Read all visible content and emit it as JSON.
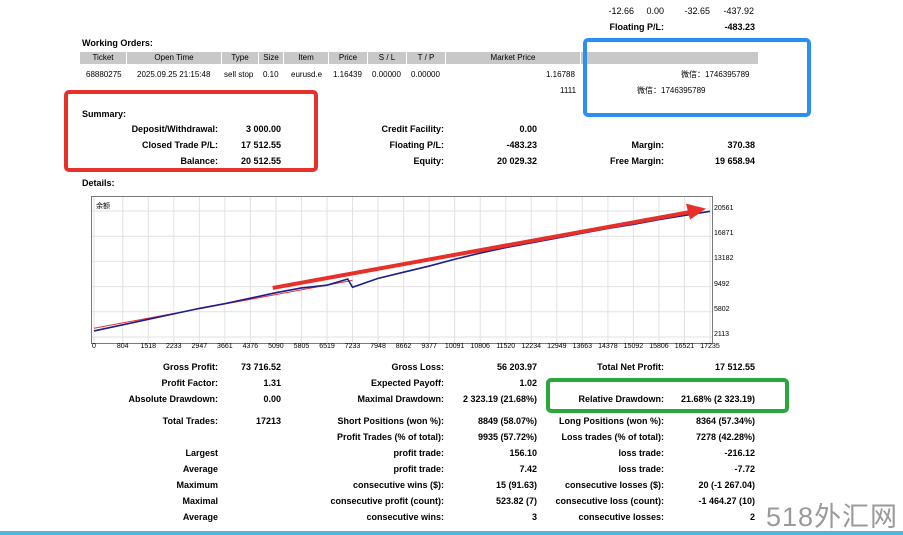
{
  "top_rows": {
    "row1": [
      "-12.66",
      "0.00",
      "-32.65",
      "-437.92"
    ],
    "floating_label": "Floating P/L:",
    "floating_value": "-483.23"
  },
  "working_orders": {
    "title": "Working Orders:",
    "headers": [
      "Ticket",
      "Open Time",
      "Type",
      "Size",
      "Item",
      "Price",
      "S / L",
      "T / P",
      "Market Price"
    ],
    "row": [
      "68880275",
      "2025.09.25 21:15:48",
      "sell stop",
      "0.10",
      "eurusd.e",
      "1.16439",
      "0.00000",
      "0.00000",
      "1.16788"
    ],
    "note1": "微信：1746395789",
    "extra_value": "1111",
    "note2": "微信：1746395789"
  },
  "summary": {
    "title": "Summary:",
    "deposit_label": "Deposit/Withdrawal:",
    "deposit_value": "3 000.00",
    "closed_label": "Closed Trade P/L:",
    "closed_value": "17 512.55",
    "balance_label": "Balance:",
    "balance_value": "20 512.55",
    "credit_label": "Credit Facility:",
    "credit_value": "0.00",
    "floating_label": "Floating P/L:",
    "floating_value": "-483.23",
    "equity_label": "Equity:",
    "equity_value": "20 029.32",
    "margin_label": "Margin:",
    "margin_value": "370.38",
    "free_margin_label": "Free Margin:",
    "free_margin_value": "19 658.94"
  },
  "details_title": "Details:",
  "chart_data": {
    "type": "line",
    "title": "余额",
    "x_ticks": [
      "0",
      "804",
      "1518",
      "2233",
      "2947",
      "3661",
      "4376",
      "5090",
      "5805",
      "6519",
      "7233",
      "7948",
      "8662",
      "9377",
      "10091",
      "10806",
      "11520",
      "12234",
      "12949",
      "13663",
      "14378",
      "15092",
      "15806",
      "16521",
      "17235"
    ],
    "y_ticks": [
      "20561",
      "16871",
      "13182",
      "9492",
      "5802",
      "2113"
    ],
    "ylim": [
      2113,
      20561
    ],
    "xlim": [
      0,
      17235
    ],
    "series": [
      {
        "x": [
          0,
          804,
          1518,
          2233,
          2947,
          3661,
          4376,
          5090,
          5805,
          6519,
          7100,
          7233,
          7948,
          8662,
          9377,
          10091,
          10806,
          11520,
          12234,
          12949,
          13663,
          14378,
          15092,
          15806,
          16521,
          17235
        ],
        "values": [
          3000,
          3900,
          4700,
          5500,
          6300,
          7000,
          7800,
          8600,
          9300,
          9700,
          10600,
          9400,
          10700,
          11600,
          12500,
          13500,
          14400,
          15200,
          15900,
          16600,
          17300,
          18000,
          18600,
          19300,
          19900,
          20512
        ]
      }
    ],
    "colors": {
      "line": "#1c1c8f",
      "arrow": "#e8302a"
    }
  },
  "stats": {
    "gross_profit_label": "Gross Profit:",
    "gross_profit": "73 716.52",
    "gross_loss_label": "Gross Loss:",
    "gross_loss": "56 203.97",
    "net_profit_label": "Total Net Profit:",
    "net_profit": "17 512.55",
    "profit_factor_label": "Profit Factor:",
    "profit_factor": "1.31",
    "expected_label": "Expected Payoff:",
    "expected": "1.02",
    "abs_dd_label": "Absolute Drawdown:",
    "abs_dd": "0.00",
    "max_dd_label": "Maximal Drawdown:",
    "max_dd": "2 323.19 (21.68%)",
    "rel_dd_label": "Relative Drawdown:",
    "rel_dd": "21.68% (2 323.19)",
    "total_trades_label": "Total Trades:",
    "total_trades": "17213",
    "short_label": "Short Positions (won %):",
    "short": "8849 (58.07%)",
    "long_label": "Long Positions (won %):",
    "long": "8364 (57.34%)",
    "profit_trades_label": "Profit Trades (% of total):",
    "profit_trades": "9935 (57.72%)",
    "loss_trades_label": "Loss trades (% of total):",
    "loss_trades": "7278 (42.28%)",
    "largest_label": "Largest",
    "avg_label": "Average",
    "max_label": "Maximum",
    "maximal_label": "Maximal",
    "average2_label": "Average",
    "largest_profit_label": "profit trade:",
    "largest_profit": "156.10",
    "largest_loss_label": "loss trade:",
    "largest_loss": "-216.12",
    "avg_profit_label": "profit trade:",
    "avg_profit": "7.42",
    "avg_loss_label": "loss trade:",
    "avg_loss": "-7.72",
    "cons_wins_label": "consecutive wins ($):",
    "cons_wins": "15 (91.63)",
    "cons_losses_label": "consecutive losses ($):",
    "cons_losses": "20 (-1 267.04)",
    "cons_profit_label": "consecutive profit (count):",
    "cons_profit": "523.82 (7)",
    "cons_loss_label": "consecutive loss (count):",
    "cons_loss": "-1 464.27 (10)",
    "avg_cons_wins_label": "consecutive wins:",
    "avg_cons_wins": "3",
    "avg_cons_losses_label": "consecutive losses:",
    "avg_cons_losses": "2"
  },
  "watermark": "518外汇网"
}
